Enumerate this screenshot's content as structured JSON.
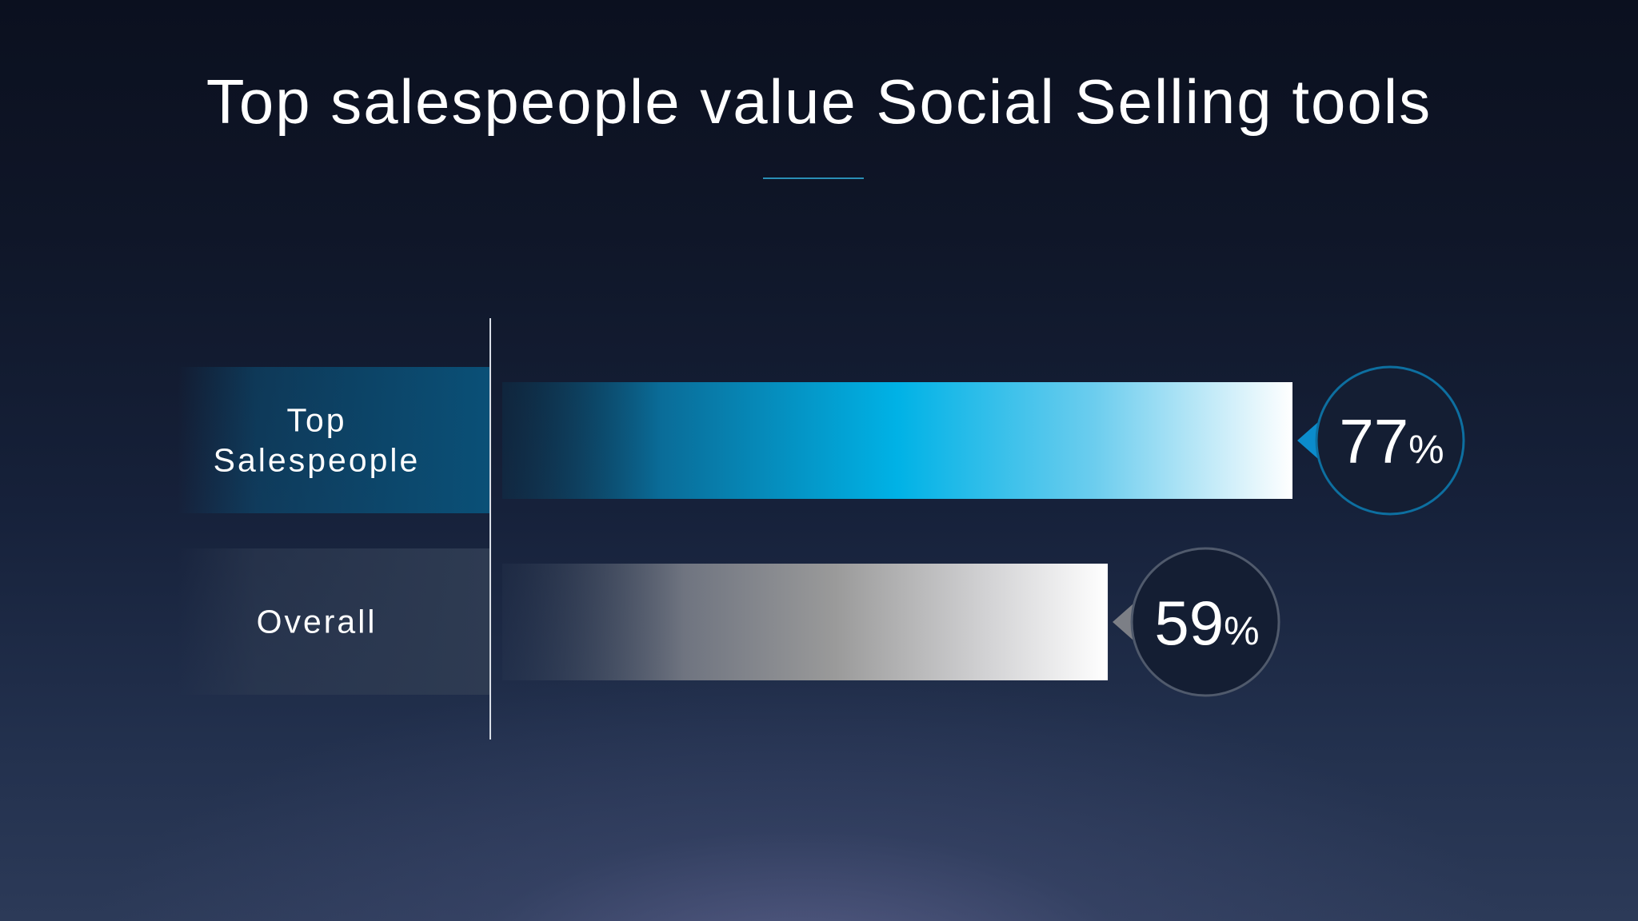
{
  "slide": {
    "title": "Top salespeople value Social Selling tools"
  },
  "chart_data": {
    "type": "bar",
    "orientation": "horizontal",
    "title": "Top salespeople value Social Selling tools",
    "categories": [
      "Top Salespeople",
      "Overall"
    ],
    "category_lines": [
      [
        "Top",
        "Salespeople"
      ],
      [
        "Overall"
      ]
    ],
    "values": [
      77,
      59
    ],
    "unit": "%",
    "value_labels": [
      {
        "number": "77",
        "unit": "%"
      },
      {
        "number": "59",
        "unit": "%"
      }
    ],
    "xlim": [
      0,
      100
    ],
    "grid": false,
    "legend": "none",
    "colors": {
      "top_bar_start": "#0a3650",
      "top_bar_mid": "#00b2e6",
      "top_bar_end": "#ffffff",
      "top_label_bg": "#0a5077",
      "top_bubble_stroke": "#0d6fa0",
      "top_pointer": "#0b8ccc",
      "overall_bar_start": "#2f3d55",
      "overall_bar_mid": "#9a9a9a",
      "overall_bar_end": "#ffffff",
      "overall_label_bg": "#2e3b52",
      "overall_bubble_stroke": "#505a6c",
      "overall_pointer": "#7c7f86",
      "bubble_fill": "#141e33"
    }
  }
}
